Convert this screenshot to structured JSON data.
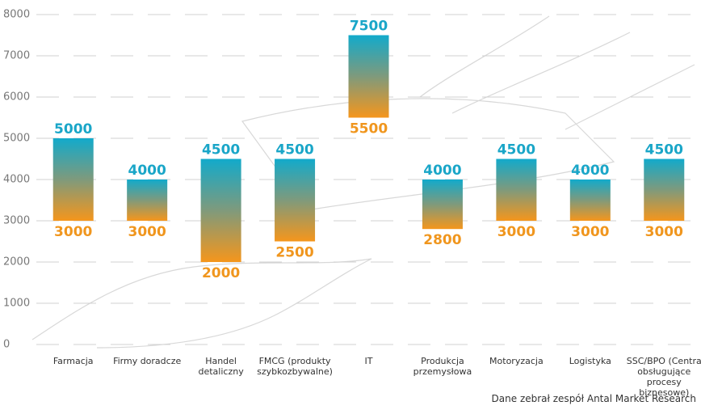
{
  "chart_data": {
    "type": "floating-bar",
    "categories": [
      "Farmacja",
      "Firmy doradcze",
      "Handel detaliczny",
      "FMCG (produkty szybkozbywalne)",
      "IT",
      "Produkcja przemysłowa",
      "Motoryzacja",
      "Logistyka",
      "SSC/BPO (Centra obsługujące procesy biznesowe)"
    ],
    "low": [
      3000,
      3000,
      2000,
      2500,
      5500,
      2800,
      3000,
      3000,
      3000
    ],
    "high": [
      5000,
      4000,
      4500,
      4500,
      7500,
      4000,
      4500,
      4000,
      4500
    ],
    "low_color": "#f0961e",
    "high_color": "#1aa6c8",
    "ylim": [
      0,
      8000
    ],
    "yticks": [
      0,
      1000,
      2000,
      3000,
      4000,
      5000,
      6000,
      7000,
      8000
    ],
    "grid": true,
    "source": "Dane zebrał zespół Antal Market Research"
  }
}
